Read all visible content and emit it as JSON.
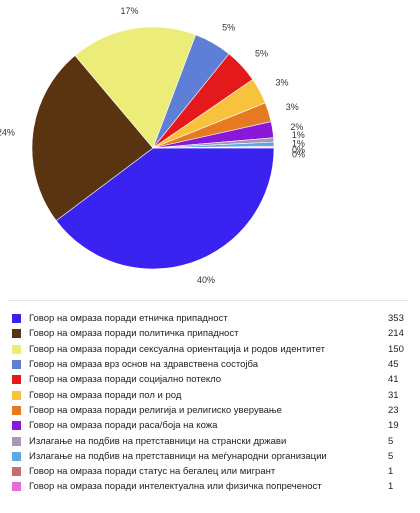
{
  "chart_data": {
    "type": "pie",
    "slices": [
      {
        "label": "Говор на омраза поради етничка припадност",
        "value": 353,
        "percent_label": "40%",
        "color": "#3a22f0"
      },
      {
        "label": "Говор на омраза поради политичка припадност",
        "value": 214,
        "percent_label": "24%",
        "color": "#5a3310"
      },
      {
        "label": "Говор на омраза поради сексуална ориентација и родов идентитет",
        "value": 150,
        "percent_label": "17%",
        "color": "#ecec78"
      },
      {
        "label": "Говор на омраза врз основ на здравствена состојба",
        "value": 45,
        "percent_label": "5%",
        "color": "#5f7fd6"
      },
      {
        "label": "Говор на омраза поради социјално потекло",
        "value": 41,
        "percent_label": "5%",
        "color": "#e3191c"
      },
      {
        "label": "Говор на омраза поради пол и род",
        "value": 31,
        "percent_label": "3%",
        "color": "#f8c23d"
      },
      {
        "label": "Говор на омраза поради религија и религиско уверување",
        "value": 23,
        "percent_label": "3%",
        "color": "#e67a22"
      },
      {
        "label": "Говор на омраза поради раса/боја на кожа",
        "value": 19,
        "percent_label": "2%",
        "color": "#8a18d8"
      },
      {
        "label": "Излагање на подбив на претставници на странски држави",
        "value": 5,
        "percent_label": "1%",
        "color": "#a895b8"
      },
      {
        "label": "Излагање на подбив на претставници на меѓународни организации",
        "value": 5,
        "percent_label": "1%",
        "color": "#5aa8e6"
      },
      {
        "label": "Говор на омраза поради статус на бегалец или мигрант",
        "value": 1,
        "percent_label": "0%",
        "color": "#c07070"
      },
      {
        "label": "Говор на омраза поради интелектуална или физичка попреченост",
        "value": 1,
        "percent_label": "0%",
        "color": "#e070d8"
      }
    ]
  }
}
